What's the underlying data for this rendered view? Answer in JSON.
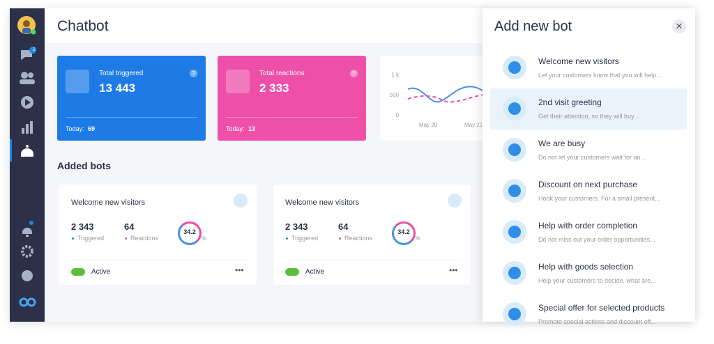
{
  "sidebar": {
    "badge": "2"
  },
  "header": {
    "title": "Chatbot"
  },
  "stats": [
    {
      "label": "Total triggered",
      "value": "13 443",
      "today_label": "Today:",
      "today": "69"
    },
    {
      "label": "Total reactions",
      "value": "2 333",
      "today_label": "Today:",
      "today": "13"
    }
  ],
  "mini_chart": {
    "yticks": [
      "1 k",
      "500",
      "0"
    ],
    "xticks": [
      "May 20",
      "May 21"
    ]
  },
  "section_title": "Added bots",
  "bots": [
    {
      "name": "Welcome new visitors",
      "triggered": "2 343",
      "triggered_label": "Triggered",
      "reactions": "64",
      "reactions_label": "Reactions",
      "rate": "34.2",
      "rate_unit": "%",
      "status": "Active"
    },
    {
      "name": "Welcome new visitors",
      "triggered": "2 343",
      "triggered_label": "Triggered",
      "reactions": "64",
      "reactions_label": "Reactions",
      "rate": "34.2",
      "rate_unit": "%",
      "status": "Active"
    }
  ],
  "panel": {
    "title": "Add new bot",
    "items": [
      {
        "title": "Welcome new visitors",
        "desc": "Let your customers know that you will help..."
      },
      {
        "title": "2nd visit greeting",
        "desc": "Get their attention, so they will buy..."
      },
      {
        "title": "We are busy",
        "desc": "Do not let your customers wait for an..."
      },
      {
        "title": "Discount on next purchase",
        "desc": "Hook your customers. For a small present..."
      },
      {
        "title": "Help with order completion",
        "desc": "Do not miss out your order opportunities..."
      },
      {
        "title": "Help with goods selection",
        "desc": "Help your customers to decide, what are..."
      },
      {
        "title": "Special offer for selected products",
        "desc": "Promote special actions and discount off..."
      }
    ]
  }
}
